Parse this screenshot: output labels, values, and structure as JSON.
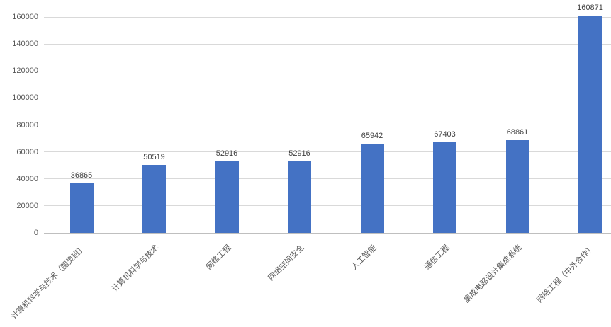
{
  "chart_data": {
    "type": "bar",
    "title": "",
    "xlabel": "",
    "ylabel": "",
    "categories": [
      "计算机科学与技术（图灵班）",
      "计算机科学与技术",
      "网络工程",
      "网络空间安全",
      "人工智能",
      "通信工程",
      "集成电路设计集成系统",
      "网络工程（中外合作）"
    ],
    "values": [
      36865,
      50519,
      52916,
      52916,
      65942,
      67403,
      68861,
      160871
    ],
    "data_labels": [
      "36865",
      "50519",
      "52916",
      "52916",
      "65942",
      "67403",
      "68861",
      "160871"
    ],
    "ylim": [
      0,
      160000
    ],
    "ytick_step": 20000,
    "ytick_labels": [
      "0",
      "20000",
      "40000",
      "60000",
      "80000",
      "100000",
      "120000",
      "140000",
      "160000"
    ],
    "grid": true,
    "legend": "none",
    "x_label_rotation_deg": 45,
    "colors": {
      "bar": "#4472C4",
      "gridline": "#D9D9D9",
      "axis_line": "#BFBFBF",
      "tick_label": "#595959",
      "data_label": "#404040",
      "background": "#FFFFFF"
    }
  }
}
